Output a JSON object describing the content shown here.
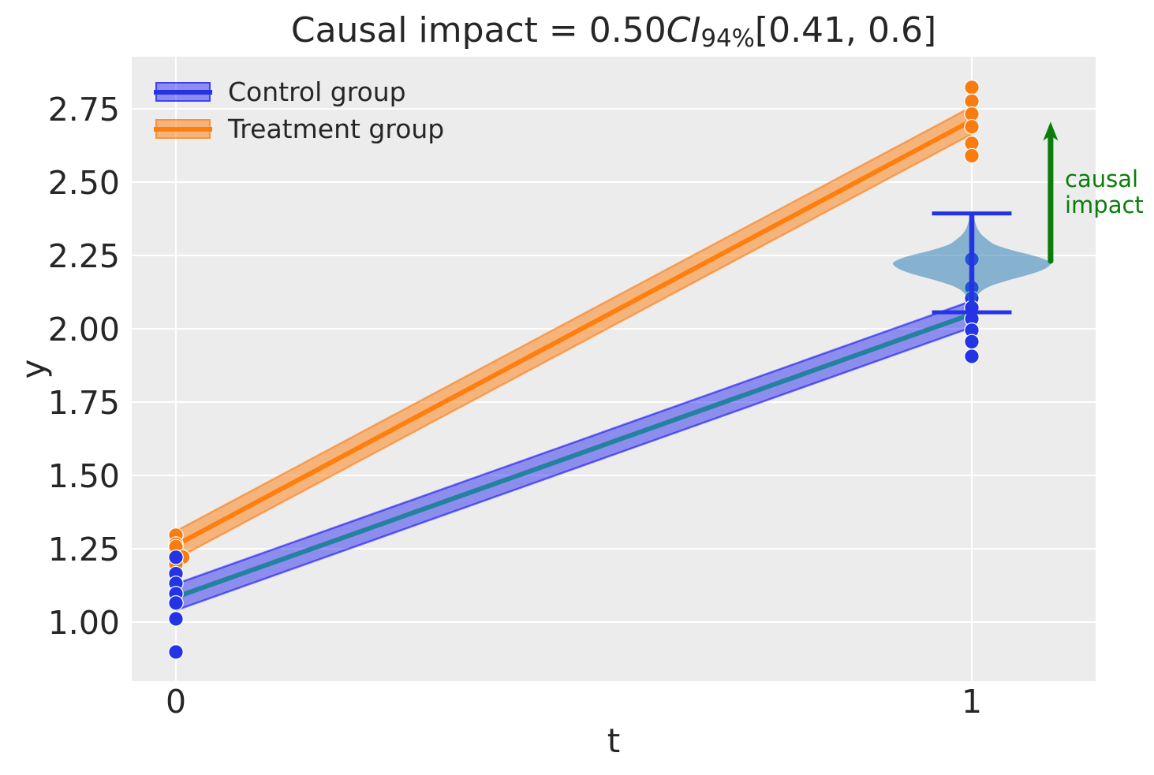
{
  "title": {
    "prefix": "Causal impact = 0.50",
    "ci": "CI",
    "ci_sub": "94%",
    "interval": "[0.41, 0.6]"
  },
  "axes": {
    "xlabel": "t",
    "ylabel": "y"
  },
  "legend": {
    "items": [
      {
        "label": "Control group"
      },
      {
        "label": "Treatment group"
      }
    ]
  },
  "annotation": {
    "label": "causal impact"
  },
  "colors": {
    "axes_bg": "#ececec",
    "grid": "#ffffff",
    "text": "#262626",
    "control_marker": "#2433e3",
    "treatment_marker": "#f97c10",
    "violin_fill": "rgba(31,119,180,0.5)",
    "arrow_green": "#0a7d0a"
  },
  "chart_data": {
    "type": "scatter",
    "title": "Causal impact = 0.50CI94%[0.41, 0.6]",
    "xlabel": "t",
    "ylabel": "y",
    "x_tick_labels": [
      "0",
      "1"
    ],
    "x_tick_values": [
      0,
      1
    ],
    "y_tick_labels": [
      "1.00",
      "1.25",
      "1.50",
      "1.75",
      "2.00",
      "2.25",
      "2.50",
      "2.75"
    ],
    "y_tick_values": [
      1.0,
      1.25,
      1.5,
      1.75,
      2.0,
      2.25,
      2.5,
      2.75
    ],
    "xlim": [
      -0.0555,
      1.1556
    ],
    "ylim": [
      0.798,
      2.928
    ],
    "series": [
      {
        "name": "Control group",
        "x": [
          0,
          1
        ],
        "mean": [
          1.085,
          2.05
        ],
        "hdi_lo": [
          1.04,
          2.005
        ],
        "hdi_hi": [
          1.13,
          2.095
        ],
        "line_color": "#2382a0",
        "fill_color": "rgba(0,0,240,0.4)",
        "edge_color": "rgba(0,0,255,0.55)"
      },
      {
        "name": "Treatment group",
        "x": [
          0,
          1
        ],
        "mean": [
          1.262,
          2.71
        ],
        "hdi_lo": [
          1.215,
          2.664
        ],
        "hdi_hi": [
          1.31,
          2.757
        ],
        "line_color": "#ff7f0e",
        "fill_color": "rgba(255,124,14,0.5)",
        "edge_color": "rgba(255,124,14,0.6)"
      }
    ],
    "scatter": [
      {
        "group": "treatment",
        "t": 0,
        "points": [
          [
            0,
            1.296
          ],
          [
            0,
            1.266
          ],
          [
            0,
            1.257
          ],
          [
            0.0085,
            1.2215
          ],
          [
            0,
            1.198
          ]
        ]
      },
      {
        "group": "treatment",
        "t": 1,
        "points": [
          [
            1,
            2.823
          ],
          [
            1,
            2.776
          ],
          [
            1,
            2.732
          ],
          [
            1,
            2.689
          ],
          [
            1,
            2.632
          ],
          [
            1,
            2.59
          ]
        ]
      },
      {
        "group": "control",
        "t": 0,
        "points": [
          [
            0,
            1.221
          ],
          [
            0,
            1.165
          ],
          [
            0,
            1.132
          ],
          [
            0,
            1.097
          ],
          [
            0,
            1.065
          ],
          [
            0,
            1.011
          ],
          [
            0,
            0.898
          ]
        ]
      },
      {
        "group": "control",
        "t": 1,
        "points": [
          [
            1,
            2.237
          ],
          [
            1,
            2.14
          ],
          [
            1,
            2.104
          ],
          [
            1,
            2.072
          ],
          [
            1,
            2.034
          ],
          [
            1,
            1.995
          ],
          [
            1,
            1.956
          ],
          [
            1,
            1.906
          ]
        ]
      }
    ],
    "violin": {
      "x": 1,
      "min": 2.056,
      "max": 2.393,
      "mode": 2.223,
      "half_width": 0.0991,
      "whisker_halfwidth": 0.05
    },
    "arrow": {
      "x": 1.099,
      "y_from": 2.231,
      "y_to": 2.706,
      "label": "causal impact"
    }
  }
}
